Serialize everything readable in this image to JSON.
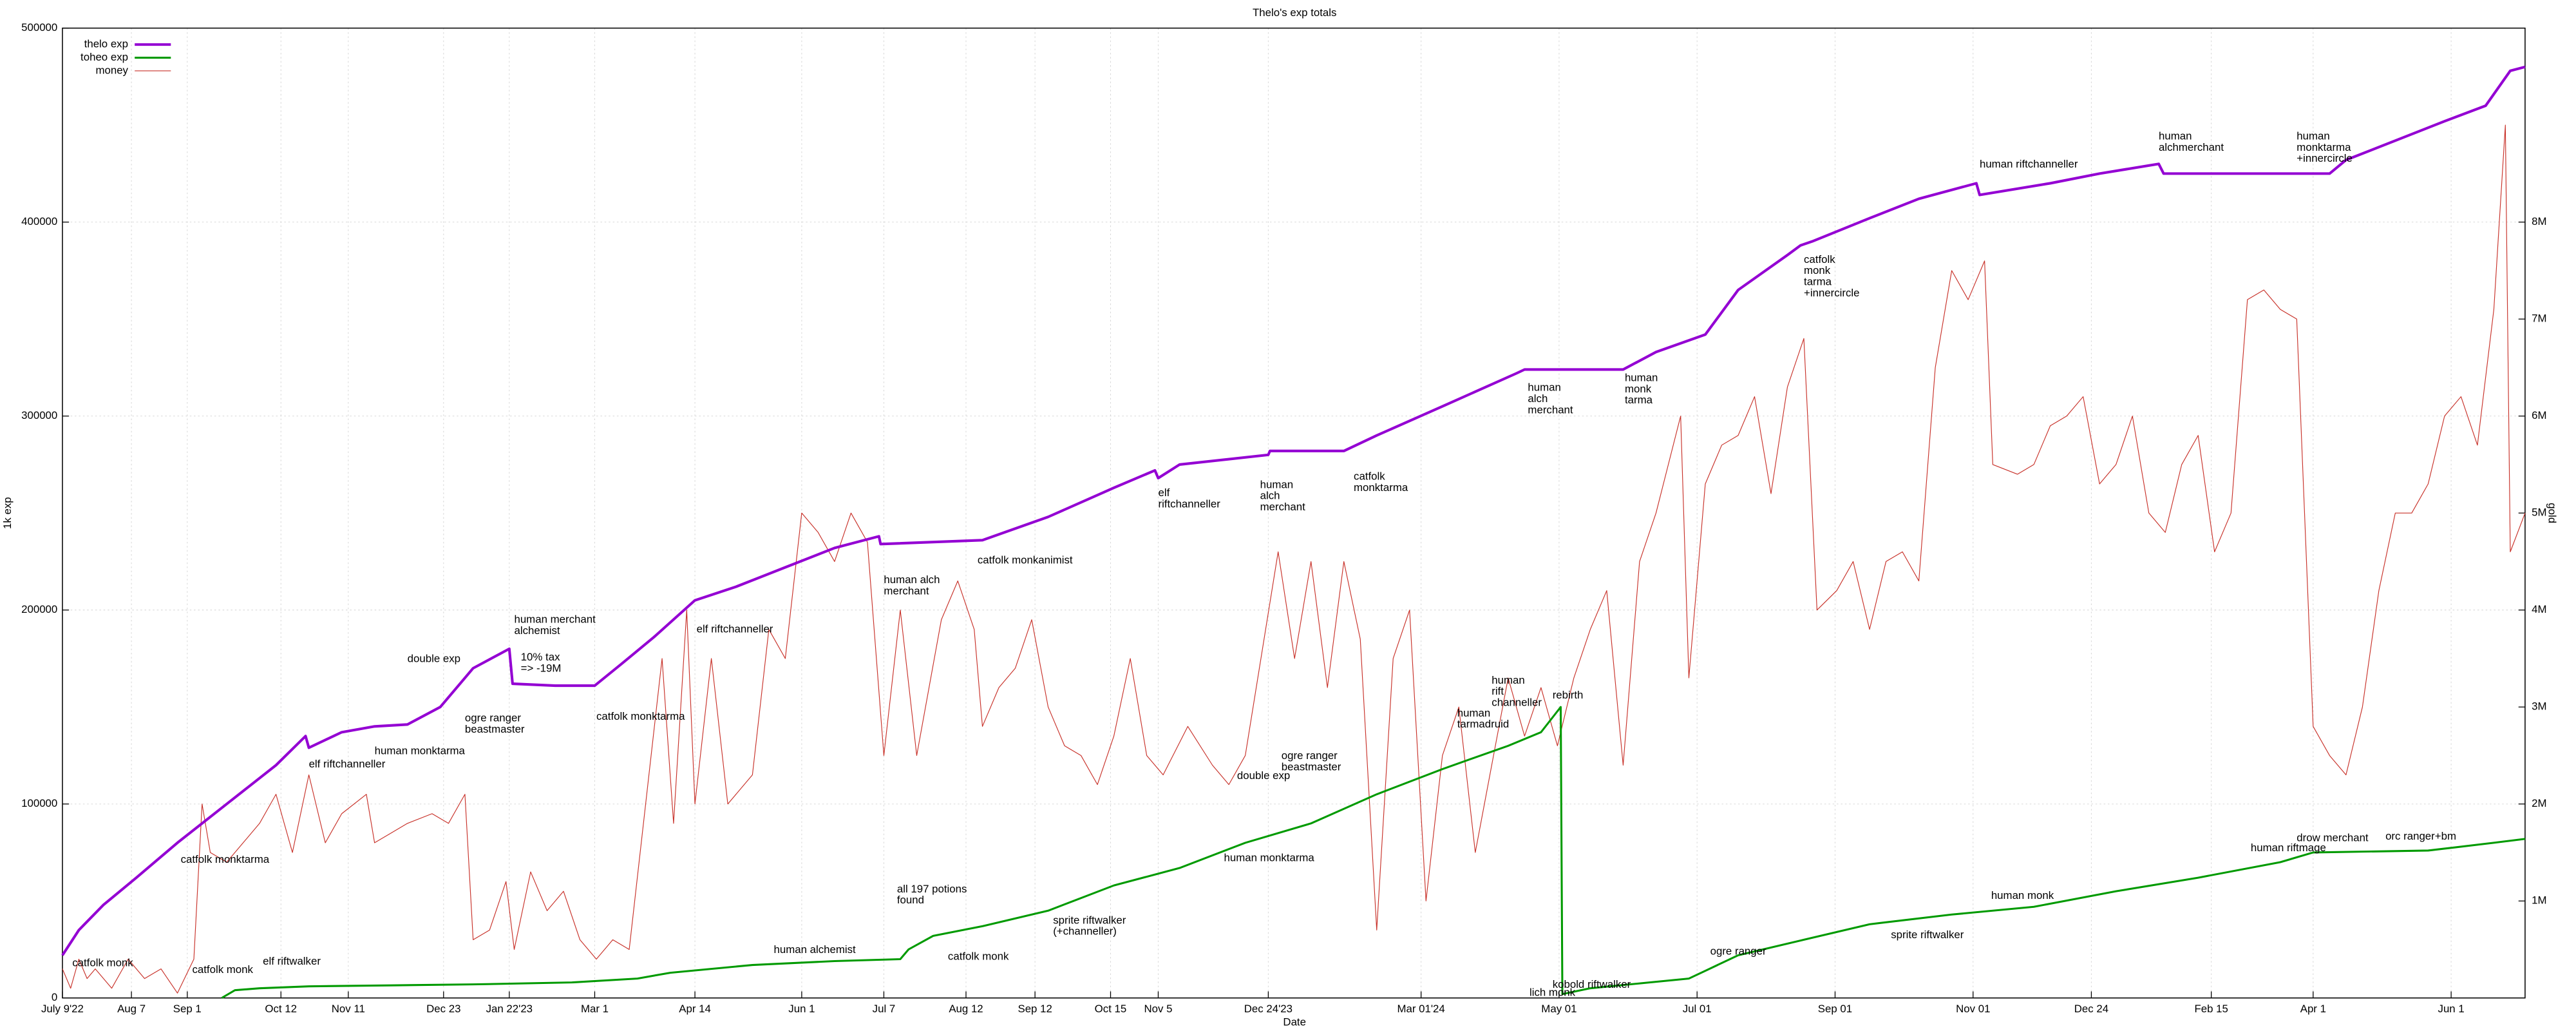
{
  "chart_data": {
    "type": "line",
    "title": "Thelo's exp totals",
    "x_label": "Date",
    "y_label": "1k exp",
    "y2_label": "gold",
    "xlim": [
      0,
      1499
    ],
    "ylim": [
      0,
      500000
    ],
    "y2lim": [
      0,
      10000000
    ],
    "grid": true,
    "legend": "top left",
    "xticks": [
      {
        "value": 0,
        "label": "July 9'22"
      },
      {
        "value": 42,
        "label": "Aug 7"
      },
      {
        "value": 76,
        "label": "Sep 1"
      },
      {
        "value": 133,
        "label": "Oct 12"
      },
      {
        "value": 174,
        "label": "Nov 11"
      },
      {
        "value": 232,
        "label": "Dec 23"
      },
      {
        "value": 272,
        "label": "Jan 22'23"
      },
      {
        "value": 324,
        "label": "Mar 1"
      },
      {
        "value": 385,
        "label": "Apr 14"
      },
      {
        "value": 450,
        "label": "Jun 1"
      },
      {
        "value": 500,
        "label": "Jul 7"
      },
      {
        "value": 550,
        "label": "Aug 12"
      },
      {
        "value": 592,
        "label": "Sep 12"
      },
      {
        "value": 638,
        "label": "Oct 15"
      },
      {
        "value": 667,
        "label": "Nov 5"
      },
      {
        "value": 734,
        "label": "Dec 24'23"
      },
      {
        "value": 827,
        "label": "Mar 01'24"
      },
      {
        "value": 911,
        "label": "May 01"
      },
      {
        "value": 995,
        "label": "Jul 01"
      },
      {
        "value": 1079,
        "label": "Sep 01"
      },
      {
        "value": 1163,
        "label": "Nov 01"
      },
      {
        "value": 1235,
        "label": "Dec 24"
      },
      {
        "value": 1308,
        "label": "Feb 15"
      },
      {
        "value": 1370,
        "label": "Apr 1"
      },
      {
        "value": 1454,
        "label": "Jun 1"
      }
    ],
    "yticks": [
      0,
      100000,
      200000,
      300000,
      400000,
      500000
    ],
    "y2ticks": [
      {
        "value": 1000000,
        "label": "1M"
      },
      {
        "value": 2000000,
        "label": "2M"
      },
      {
        "value": 3000000,
        "label": "3M"
      },
      {
        "value": 4000000,
        "label": "4M"
      },
      {
        "value": 5000000,
        "label": "5M"
      },
      {
        "value": 6000000,
        "label": "6M"
      },
      {
        "value": 7000000,
        "label": "7M"
      },
      {
        "value": 8000000,
        "label": "8M"
      }
    ],
    "series": [
      {
        "name": "thelo exp",
        "color": "#9400d3",
        "axis": "y",
        "x": [
          0,
          10,
          25,
          45,
          70,
          100,
          130,
          148,
          150,
          170,
          190,
          210,
          230,
          245,
          250,
          272,
          274,
          300,
          324,
          340,
          360,
          385,
          410,
          440,
          470,
          497,
          498,
          560,
          600,
          640,
          665,
          667,
          680,
          734,
          735,
          780,
          800,
          840,
          885,
          890,
          950,
          970,
          1000,
          1020,
          1050,
          1058,
          1065,
          1100,
          1130,
          1165,
          1167,
          1210,
          1240,
          1276,
          1279,
          1380,
          1390,
          1420,
          1450,
          1475,
          1490,
          1499
        ],
        "values": [
          22000,
          35000,
          48000,
          62000,
          80000,
          100000,
          120000,
          135000,
          129000,
          137000,
          140000,
          141000,
          150000,
          165000,
          170000,
          180000,
          162000,
          161000,
          161000,
          172000,
          186000,
          205000,
          212000,
          222000,
          232000,
          238000,
          234000,
          236000,
          248000,
          263000,
          272000,
          268000,
          275000,
          280000,
          282000,
          282000,
          290000,
          305000,
          322000,
          324000,
          324000,
          333000,
          342000,
          365000,
          383000,
          388000,
          390000,
          402000,
          412000,
          420000,
          414000,
          420000,
          425000,
          430000,
          425000,
          425000,
          432000,
          442000,
          452000,
          460000,
          478000,
          480000
        ]
      },
      {
        "name": "toheo exp",
        "color": "#009a00",
        "axis": "y",
        "x": [
          97,
          105,
          120,
          150,
          200,
          250,
          310,
          350,
          370,
          420,
          470,
          510,
          515,
          530,
          560,
          600,
          640,
          680,
          720,
          760,
          800,
          840,
          880,
          900,
          912,
          913,
          930,
          990,
          1000,
          1020,
          1060,
          1100,
          1150,
          1200,
          1250,
          1300,
          1350,
          1370,
          1440,
          1480,
          1499
        ],
        "values": [
          0,
          4000,
          5000,
          6000,
          6500,
          7000,
          8000,
          10000,
          13000,
          17000,
          19000,
          20000,
          25000,
          32000,
          37000,
          45000,
          58000,
          67000,
          80000,
          90000,
          105000,
          118000,
          130000,
          137000,
          150000,
          2000,
          5000,
          10000,
          14000,
          22000,
          30000,
          38000,
          43000,
          47000,
          55000,
          62000,
          70000,
          75000,
          76000,
          80000,
          82000
        ]
      },
      {
        "name": "money",
        "color": "#c8322a",
        "axis": "y2",
        "x": [
          0,
          5,
          10,
          15,
          20,
          30,
          40,
          50,
          60,
          70,
          80,
          85,
          90,
          100,
          110,
          120,
          130,
          140,
          150,
          160,
          170,
          185,
          190,
          200,
          210,
          225,
          235,
          245,
          250,
          260,
          270,
          275,
          285,
          295,
          305,
          315,
          325,
          335,
          345,
          355,
          365,
          372,
          380,
          385,
          395,
          405,
          420,
          430,
          440,
          450,
          460,
          470,
          480,
          490,
          500,
          510,
          520,
          535,
          545,
          555,
          560,
          570,
          580,
          590,
          600,
          610,
          620,
          630,
          640,
          650,
          660,
          670,
          685,
          700,
          710,
          720,
          740,
          750,
          760,
          770,
          780,
          790,
          800,
          810,
          820,
          830,
          840,
          850,
          860,
          870,
          880,
          890,
          900,
          910,
          920,
          930,
          940,
          950,
          960,
          970,
          985,
          990,
          1000,
          1010,
          1020,
          1030,
          1040,
          1050,
          1060,
          1068,
          1080,
          1090,
          1100,
          1110,
          1120,
          1130,
          1140,
          1150,
          1160,
          1170,
          1175,
          1190,
          1200,
          1210,
          1220,
          1230,
          1240,
          1250,
          1260,
          1270,
          1280,
          1290,
          1300,
          1310,
          1320,
          1330,
          1340,
          1350,
          1360,
          1370,
          1380,
          1390,
          1400,
          1410,
          1420,
          1430,
          1440,
          1450,
          1460,
          1470,
          1480,
          1487,
          1490,
          1499
        ],
        "values": [
          300000,
          100000,
          400000,
          200000,
          300000,
          100000,
          400000,
          200000,
          300000,
          50000,
          400000,
          2000000,
          1500000,
          1400000,
          1600000,
          1800000,
          2100000,
          1500000,
          2300000,
          1600000,
          1900000,
          2100000,
          1600000,
          1700000,
          1800000,
          1900000,
          1800000,
          2100000,
          600000,
          700000,
          1200000,
          500000,
          1300000,
          900000,
          1100000,
          600000,
          400000,
          600000,
          500000,
          2000000,
          3500000,
          1800000,
          4000000,
          2000000,
          3500000,
          2000000,
          2300000,
          3800000,
          3500000,
          5000000,
          4800000,
          4500000,
          5000000,
          4700000,
          2500000,
          4000000,
          2500000,
          3900000,
          4300000,
          3800000,
          2800000,
          3200000,
          3400000,
          3900000,
          3000000,
          2600000,
          2500000,
          2200000,
          2700000,
          3500000,
          2500000,
          2300000,
          2800000,
          2400000,
          2200000,
          2500000,
          4600000,
          3500000,
          4500000,
          3200000,
          4500000,
          3700000,
          700000,
          3500000,
          4000000,
          1000000,
          2500000,
          3000000,
          1500000,
          2400000,
          3300000,
          2700000,
          3200000,
          2600000,
          3300000,
          3800000,
          4200000,
          2400000,
          4500000,
          5000000,
          6000000,
          3300000,
          5300000,
          5700000,
          5800000,
          6200000,
          5200000,
          6300000,
          6800000,
          4000000,
          4200000,
          4500000,
          3800000,
          4500000,
          4600000,
          4300000,
          6500000,
          7500000,
          7200000,
          7600000,
          5500000,
          5400000,
          5500000,
          5900000,
          6000000,
          6200000,
          5300000,
          5500000,
          6000000,
          5000000,
          4800000,
          5500000,
          5800000,
          4600000,
          5000000,
          7200000,
          7300000,
          7100000,
          7000000,
          2800000,
          2500000,
          2300000,
          3000000,
          4200000,
          5000000,
          5000000,
          5300000,
          6000000,
          6200000,
          5700000,
          7100000,
          9000000,
          4600000,
          5000000
        ]
      }
    ],
    "annotations": [
      [
        "catfolk monk"
      ],
      [
        "catfolk monk"
      ],
      [
        "elf riftwalker"
      ],
      [
        "catfolk monktarma"
      ],
      [
        "elf riftchanneller"
      ],
      [
        "human monktarma"
      ],
      [
        "double exp"
      ],
      [
        "ogre ranger",
        "beastmaster"
      ],
      [
        "human merchant",
        "alchemist"
      ],
      [
        "10% tax",
        "=> -19M"
      ],
      [
        "catfolk monktarma"
      ],
      [
        "elf riftchanneller"
      ],
      [
        "human alchemist"
      ],
      [
        "all 197 potions",
        "found"
      ],
      [
        "catfolk monk"
      ],
      [
        "human alch",
        "merchant"
      ],
      [
        "catfolk monkanimist"
      ],
      [
        "sprite riftwalker",
        "(+channeller)"
      ],
      [
        "elf",
        "riftchanneller"
      ],
      [
        "human",
        "alch",
        "merchant"
      ],
      [
        "human monktarma"
      ],
      [
        "double exp"
      ],
      [
        "ogre ranger",
        "beastmaster"
      ],
      [
        "catfolk",
        "monktarma"
      ],
      [
        "human",
        "alch",
        "merchant"
      ],
      [
        "human",
        "monk",
        "tarma"
      ],
      [
        "human",
        "tarmadruid"
      ],
      [
        "human",
        "rift",
        "channeller"
      ],
      [
        "rebirth"
      ],
      [
        "lich monk"
      ],
      [
        "kobold riftwalker"
      ],
      [
        "ogre ranger"
      ],
      [
        "catfolk",
        "monk",
        "tarma",
        "+innercircle"
      ],
      [
        "human riftchanneller"
      ],
      [
        "sprite riftwalker"
      ],
      [
        "human monk"
      ],
      [
        "human",
        "alchmerchant"
      ],
      [
        "human",
        "monktarma",
        "+innercircle"
      ],
      [
        "human riftmage"
      ],
      [
        "drow merchant"
      ],
      [
        "orc ranger+bm"
      ]
    ]
  }
}
